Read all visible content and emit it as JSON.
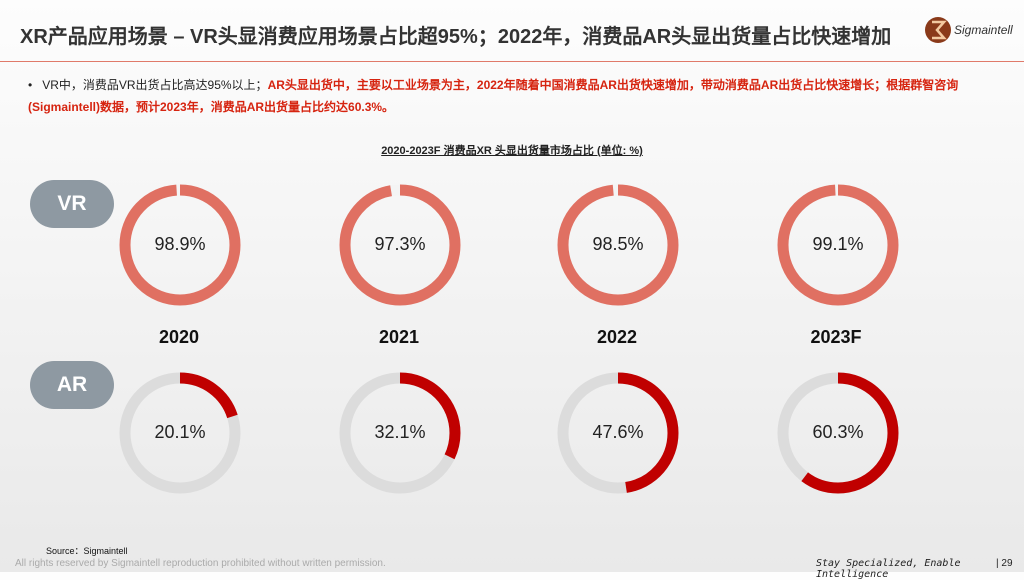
{
  "header": {
    "title": "XR产品应用场景 – VR头显消费应用场景占比超95%；2022年，消费品AR头显出货量占比快速增加",
    "logo_text": "Sigmaintell"
  },
  "bullet": {
    "normal": "VR中，消费品VR出货占比高达95%以上；",
    "highlight": "AR头显出货中，主要以工业场景为主，2022年随着中国消费品AR出货快速增加，带动消费品AR出货占比快速增长；根据群智咨询(Sigmaintell)数据，预计2023年，消费品AR出货量占比约达60.3%。"
  },
  "chart_data": {
    "type": "pie",
    "title": "2020-2023F  消费品XR 头显出货量市场占比  (单位: %)",
    "categories": [
      "2020",
      "2021",
      "2022",
      "2023F"
    ],
    "series": [
      {
        "name": "VR",
        "values": [
          98.9,
          97.3,
          98.5,
          99.1
        ],
        "labels": [
          "98.9%",
          "97.3%",
          "98.5%",
          "99.1%"
        ],
        "color": "#e07062"
      },
      {
        "name": "AR",
        "values": [
          20.1,
          32.1,
          47.6,
          60.3
        ],
        "labels": [
          "20.1%",
          "32.1%",
          "47.6%",
          "60.3%"
        ],
        "color": "#c00000"
      }
    ],
    "track_color": "#dcdcdc"
  },
  "footer": {
    "source": "Source：Sigmaintell",
    "rights": "All rights reserved by Sigmaintell reproduction prohibited without written permission.",
    "tagline": "Stay Specialized, Enable Intelligence",
    "page": "29"
  }
}
